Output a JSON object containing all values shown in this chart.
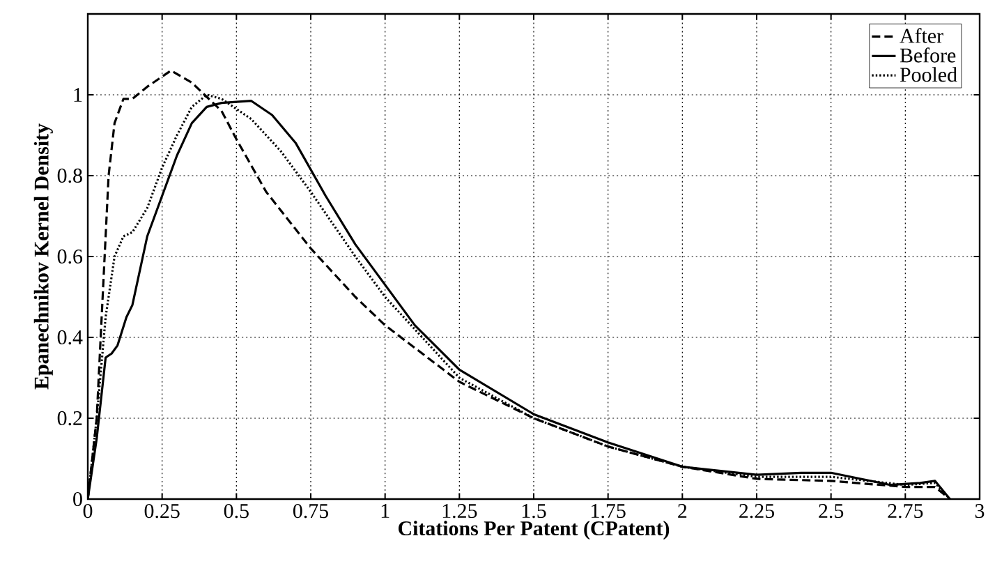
{
  "chart_data": {
    "type": "line",
    "xlabel": "Citations Per Patent (CPatent)",
    "ylabel": "Epanechnikov Kernel Density",
    "xlim": [
      0,
      3
    ],
    "ylim": [
      0,
      1.2
    ],
    "xticks": [
      0,
      0.25,
      0.5,
      0.75,
      1,
      1.25,
      1.5,
      1.75,
      2,
      2.25,
      2.5,
      2.75,
      3
    ],
    "yticks": [
      0,
      0.2,
      0.4,
      0.6,
      0.8,
      1
    ],
    "grid": true,
    "legend": "top right",
    "marker": "none",
    "series": [
      {
        "name": "After",
        "color": "#000000",
        "line_style": "dashed",
        "x": [
          0,
          0.03,
          0.05,
          0.07,
          0.09,
          0.12,
          0.15,
          0.2,
          0.28,
          0.35,
          0.45,
          0.5,
          0.6,
          0.75,
          0.9,
          1.0,
          1.25,
          1.5,
          1.75,
          2.0,
          2.25,
          2.5,
          2.75,
          2.85,
          2.9
        ],
        "values": [
          0,
          0.2,
          0.5,
          0.8,
          0.93,
          0.99,
          0.99,
          1.02,
          1.06,
          1.03,
          0.96,
          0.89,
          0.76,
          0.62,
          0.5,
          0.43,
          0.29,
          0.2,
          0.13,
          0.08,
          0.05,
          0.045,
          0.03,
          0.03,
          0
        ]
      },
      {
        "name": "Before",
        "color": "#000000",
        "line_style": "solid",
        "x": [
          0,
          0.03,
          0.06,
          0.08,
          0.1,
          0.13,
          0.15,
          0.2,
          0.25,
          0.3,
          0.35,
          0.4,
          0.45,
          0.55,
          0.62,
          0.7,
          0.8,
          0.9,
          1.0,
          1.1,
          1.25,
          1.5,
          1.75,
          2.0,
          2.25,
          2.4,
          2.5,
          2.6,
          2.7,
          2.8,
          2.85,
          2.9
        ],
        "values": [
          0,
          0.15,
          0.35,
          0.36,
          0.38,
          0.45,
          0.48,
          0.65,
          0.75,
          0.85,
          0.93,
          0.97,
          0.98,
          0.985,
          0.95,
          0.88,
          0.75,
          0.63,
          0.53,
          0.43,
          0.32,
          0.21,
          0.14,
          0.08,
          0.06,
          0.065,
          0.065,
          0.05,
          0.035,
          0.04,
          0.045,
          0
        ]
      },
      {
        "name": "Pooled",
        "color": "#000000",
        "line_style": "dotted",
        "x": [
          0,
          0.03,
          0.06,
          0.09,
          0.12,
          0.15,
          0.2,
          0.25,
          0.3,
          0.35,
          0.4,
          0.45,
          0.55,
          0.65,
          0.75,
          0.9,
          1.0,
          1.25,
          1.5,
          1.75,
          2.0,
          2.25,
          2.5,
          2.75,
          2.85,
          2.9
        ],
        "values": [
          0,
          0.2,
          0.45,
          0.6,
          0.65,
          0.66,
          0.72,
          0.82,
          0.9,
          0.97,
          1.0,
          0.99,
          0.94,
          0.86,
          0.76,
          0.6,
          0.5,
          0.3,
          0.2,
          0.13,
          0.08,
          0.055,
          0.055,
          0.035,
          0.04,
          0
        ]
      }
    ]
  }
}
